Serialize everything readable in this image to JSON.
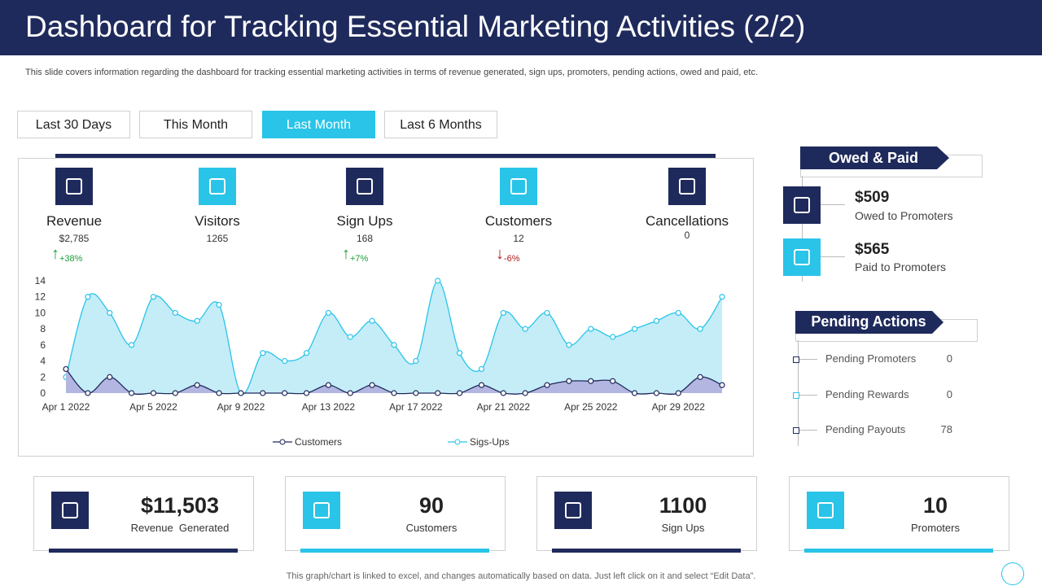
{
  "header": {
    "title": "Dashboard for Tracking Essential Marketing Activities (2/2)"
  },
  "subtitle": "This slide covers information regarding the dashboard for tracking essential marketing activities in terms of revenue generated, sign ups, promoters, pending actions, owed and paid, etc.",
  "tabs": [
    "Last 30 Days",
    "This Month",
    "Last Month",
    "Last 6 Months"
  ],
  "metrics": [
    {
      "label": "Revenue",
      "value": "$2,785",
      "change": "+38%"
    },
    {
      "label": "Visitors",
      "value": "1265"
    },
    {
      "label": "Sign Ups",
      "value": "168",
      "change": "+7%"
    },
    {
      "label": "Customers",
      "value": "12",
      "change": "-6%"
    },
    {
      "label": "Cancellations",
      "value": "0"
    }
  ],
  "chart_data": {
    "type": "area",
    "categories": [
      "Apr 1 2022",
      null,
      null,
      null,
      "Apr 5 2022",
      null,
      null,
      null,
      "Apr 9 2022",
      null,
      null,
      null,
      "Apr 13 2022",
      null,
      null,
      null,
      "Apr 17 2022",
      null,
      null,
      null,
      "Apr 21 2022",
      null,
      null,
      null,
      "Apr 25 2022",
      null,
      null,
      null,
      "Apr 29 2022",
      null,
      null
    ],
    "series": [
      {
        "name": "Customers",
        "color": "#1f2a5c",
        "fill": "#b3b6e0",
        "values": [
          3,
          0,
          2,
          0,
          0,
          0,
          1,
          0,
          0,
          0,
          0,
          0,
          1,
          0,
          1,
          0,
          0,
          0,
          0,
          1,
          0,
          0,
          1,
          1.5,
          1.5,
          1.5,
          0,
          0,
          0,
          2,
          1
        ]
      },
      {
        "name": "Sigs-Ups",
        "color": "#29c4e8",
        "fill": "#c4edf8",
        "values": [
          2,
          12,
          10,
          6,
          12,
          10,
          9,
          11,
          0,
          5,
          4,
          5,
          10,
          7,
          9,
          6,
          4,
          14,
          5,
          3,
          10,
          8,
          10,
          6,
          8,
          7,
          8,
          9,
          10,
          8,
          12
        ]
      }
    ],
    "ylim": [
      0,
      14
    ],
    "yticks": [
      0,
      2,
      4,
      6,
      8,
      10,
      12,
      14
    ]
  },
  "owed_paid": {
    "title": "Owed & Paid",
    "items": [
      {
        "value": "$509",
        "label": "Owed to Promoters"
      },
      {
        "value": "$565",
        "label": "Paid to Promoters"
      }
    ]
  },
  "pending": {
    "title": "Pending Actions",
    "items": [
      {
        "label": "Pending Promoters",
        "value": 0
      },
      {
        "label": "Pending Rewards",
        "value": 0
      },
      {
        "label": "Pending Payouts",
        "value": 78
      }
    ]
  },
  "summary": [
    {
      "value": "$11,503",
      "label": "Revenue  Generated"
    },
    {
      "value": "90",
      "label": "Customers"
    },
    {
      "value": "1100",
      "label": "Sign Ups"
    },
    {
      "value": "10",
      "label": "Promoters"
    }
  ],
  "footer": "This graph/chart is linked to excel,  and changes automatically based on data. Just left click on it and select “Edit Data”."
}
